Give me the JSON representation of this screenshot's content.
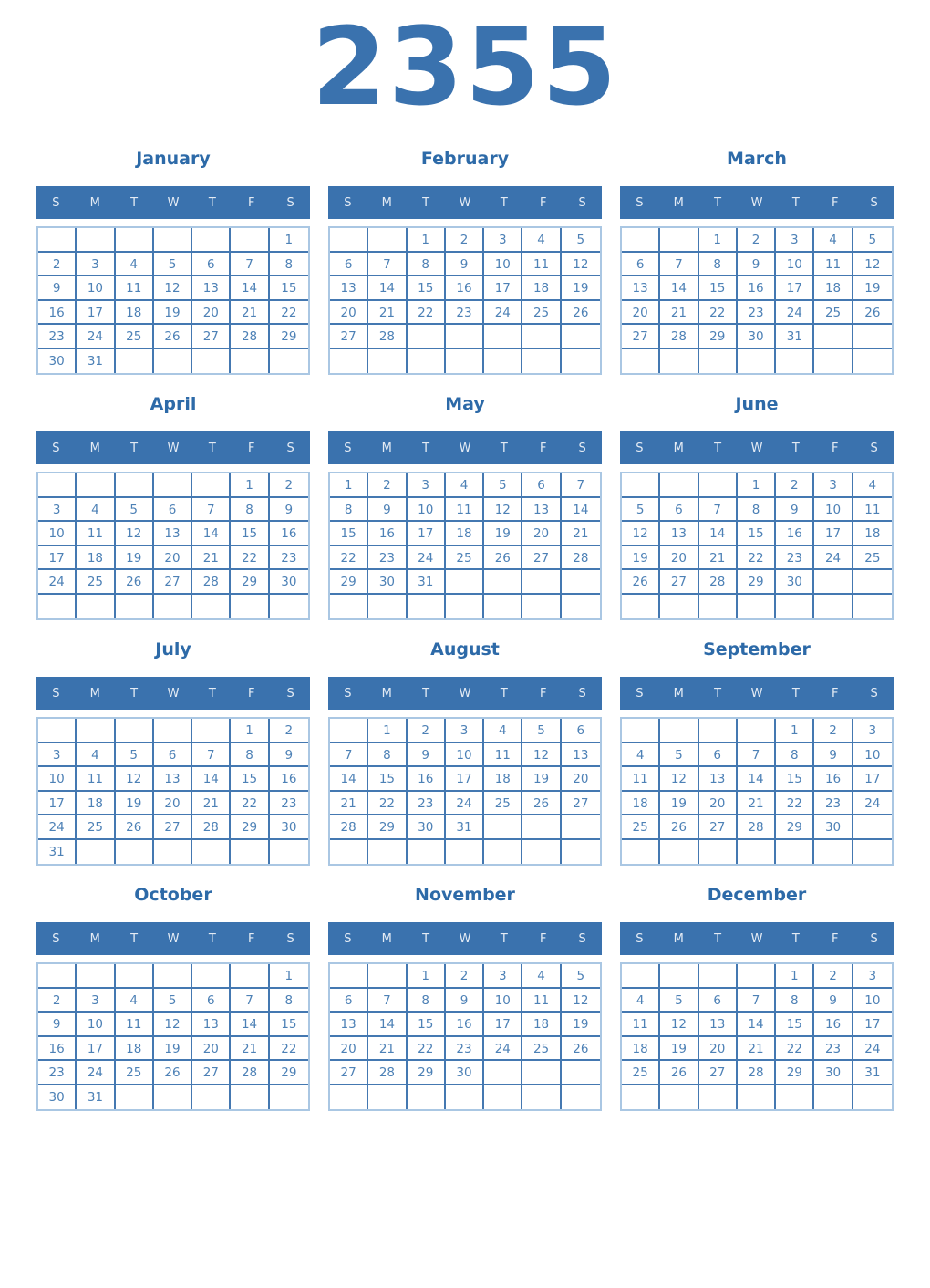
{
  "page": {
    "year": "2355"
  },
  "weekdays": [
    "S",
    "M",
    "T",
    "W",
    "T",
    "F",
    "S"
  ],
  "months": [
    {
      "name": "January",
      "weeks": [
        [
          "",
          "",
          "",
          "",
          "",
          "",
          "1"
        ],
        [
          "2",
          "3",
          "4",
          "5",
          "6",
          "7",
          "8"
        ],
        [
          "9",
          "10",
          "11",
          "12",
          "13",
          "14",
          "15"
        ],
        [
          "16",
          "17",
          "18",
          "19",
          "20",
          "21",
          "22"
        ],
        [
          "23",
          "24",
          "25",
          "26",
          "27",
          "28",
          "29"
        ],
        [
          "30",
          "31",
          "",
          "",
          "",
          "",
          ""
        ]
      ]
    },
    {
      "name": "February",
      "weeks": [
        [
          "",
          "",
          "1",
          "2",
          "3",
          "4",
          "5"
        ],
        [
          "6",
          "7",
          "8",
          "9",
          "10",
          "11",
          "12"
        ],
        [
          "13",
          "14",
          "15",
          "16",
          "17",
          "18",
          "19"
        ],
        [
          "20",
          "21",
          "22",
          "23",
          "24",
          "25",
          "26"
        ],
        [
          "27",
          "28",
          "",
          "",
          "",
          "",
          ""
        ],
        [
          "",
          "",
          "",
          "",
          "",
          "",
          ""
        ]
      ]
    },
    {
      "name": "March",
      "weeks": [
        [
          "",
          "",
          "1",
          "2",
          "3",
          "4",
          "5"
        ],
        [
          "6",
          "7",
          "8",
          "9",
          "10",
          "11",
          "12"
        ],
        [
          "13",
          "14",
          "15",
          "16",
          "17",
          "18",
          "19"
        ],
        [
          "20",
          "21",
          "22",
          "23",
          "24",
          "25",
          "26"
        ],
        [
          "27",
          "28",
          "29",
          "30",
          "31",
          "",
          ""
        ],
        [
          "",
          "",
          "",
          "",
          "",
          "",
          ""
        ]
      ]
    },
    {
      "name": "April",
      "weeks": [
        [
          "",
          "",
          "",
          "",
          "",
          "1",
          "2"
        ],
        [
          "3",
          "4",
          "5",
          "6",
          "7",
          "8",
          "9"
        ],
        [
          "10",
          "11",
          "12",
          "13",
          "14",
          "15",
          "16"
        ],
        [
          "17",
          "18",
          "19",
          "20",
          "21",
          "22",
          "23"
        ],
        [
          "24",
          "25",
          "26",
          "27",
          "28",
          "29",
          "30"
        ],
        [
          "",
          "",
          "",
          "",
          "",
          "",
          ""
        ]
      ]
    },
    {
      "name": "May",
      "weeks": [
        [
          "1",
          "2",
          "3",
          "4",
          "5",
          "6",
          "7"
        ],
        [
          "8",
          "9",
          "10",
          "11",
          "12",
          "13",
          "14"
        ],
        [
          "15",
          "16",
          "17",
          "18",
          "19",
          "20",
          "21"
        ],
        [
          "22",
          "23",
          "24",
          "25",
          "26",
          "27",
          "28"
        ],
        [
          "29",
          "30",
          "31",
          "",
          "",
          "",
          ""
        ],
        [
          "",
          "",
          "",
          "",
          "",
          "",
          ""
        ]
      ]
    },
    {
      "name": "June",
      "weeks": [
        [
          "",
          "",
          "",
          "1",
          "2",
          "3",
          "4"
        ],
        [
          "5",
          "6",
          "7",
          "8",
          "9",
          "10",
          "11"
        ],
        [
          "12",
          "13",
          "14",
          "15",
          "16",
          "17",
          "18"
        ],
        [
          "19",
          "20",
          "21",
          "22",
          "23",
          "24",
          "25"
        ],
        [
          "26",
          "27",
          "28",
          "29",
          "30",
          "",
          ""
        ],
        [
          "",
          "",
          "",
          "",
          "",
          "",
          ""
        ]
      ]
    },
    {
      "name": "July",
      "weeks": [
        [
          "",
          "",
          "",
          "",
          "",
          "1",
          "2"
        ],
        [
          "3",
          "4",
          "5",
          "6",
          "7",
          "8",
          "9"
        ],
        [
          "10",
          "11",
          "12",
          "13",
          "14",
          "15",
          "16"
        ],
        [
          "17",
          "18",
          "19",
          "20",
          "21",
          "22",
          "23"
        ],
        [
          "24",
          "25",
          "26",
          "27",
          "28",
          "29",
          "30"
        ],
        [
          "31",
          "",
          "",
          "",
          "",
          "",
          ""
        ]
      ]
    },
    {
      "name": "August",
      "weeks": [
        [
          "",
          "1",
          "2",
          "3",
          "4",
          "5",
          "6"
        ],
        [
          "7",
          "8",
          "9",
          "10",
          "11",
          "12",
          "13"
        ],
        [
          "14",
          "15",
          "16",
          "17",
          "18",
          "19",
          "20"
        ],
        [
          "21",
          "22",
          "23",
          "24",
          "25",
          "26",
          "27"
        ],
        [
          "28",
          "29",
          "30",
          "31",
          "",
          "",
          ""
        ],
        [
          "",
          "",
          "",
          "",
          "",
          "",
          ""
        ]
      ]
    },
    {
      "name": "September",
      "weeks": [
        [
          "",
          "",
          "",
          "",
          "1",
          "2",
          "3"
        ],
        [
          "4",
          "5",
          "6",
          "7",
          "8",
          "9",
          "10"
        ],
        [
          "11",
          "12",
          "13",
          "14",
          "15",
          "16",
          "17"
        ],
        [
          "18",
          "19",
          "20",
          "21",
          "22",
          "23",
          "24"
        ],
        [
          "25",
          "26",
          "27",
          "28",
          "29",
          "30",
          ""
        ],
        [
          "",
          "",
          "",
          "",
          "",
          "",
          ""
        ]
      ]
    },
    {
      "name": "October",
      "weeks": [
        [
          "",
          "",
          "",
          "",
          "",
          "",
          "1"
        ],
        [
          "2",
          "3",
          "4",
          "5",
          "6",
          "7",
          "8"
        ],
        [
          "9",
          "10",
          "11",
          "12",
          "13",
          "14",
          "15"
        ],
        [
          "16",
          "17",
          "18",
          "19",
          "20",
          "21",
          "22"
        ],
        [
          "23",
          "24",
          "25",
          "26",
          "27",
          "28",
          "29"
        ],
        [
          "30",
          "31",
          "",
          "",
          "",
          "",
          ""
        ]
      ]
    },
    {
      "name": "November",
      "weeks": [
        [
          "",
          "",
          "1",
          "2",
          "3",
          "4",
          "5"
        ],
        [
          "6",
          "7",
          "8",
          "9",
          "10",
          "11",
          "12"
        ],
        [
          "13",
          "14",
          "15",
          "16",
          "17",
          "18",
          "19"
        ],
        [
          "20",
          "21",
          "22",
          "23",
          "24",
          "25",
          "26"
        ],
        [
          "27",
          "28",
          "29",
          "30",
          "",
          "",
          ""
        ],
        [
          "",
          "",
          "",
          "",
          "",
          "",
          ""
        ]
      ]
    },
    {
      "name": "December",
      "weeks": [
        [
          "",
          "",
          "",
          "",
          "1",
          "2",
          "3"
        ],
        [
          "4",
          "5",
          "6",
          "7",
          "8",
          "9",
          "10"
        ],
        [
          "11",
          "12",
          "13",
          "14",
          "15",
          "16",
          "17"
        ],
        [
          "18",
          "19",
          "20",
          "21",
          "22",
          "23",
          "24"
        ],
        [
          "25",
          "26",
          "27",
          "28",
          "29",
          "30",
          "31"
        ],
        [
          "",
          "",
          "",
          "",
          "",
          "",
          ""
        ]
      ]
    }
  ],
  "colors": {
    "accent_blue": "#3a72ae",
    "month_title_blue": "#2d6aa8",
    "day_number_blue": "#4d81b6",
    "grid_line_blue": "#4478b1",
    "outer_border_blue": "#aac7e3",
    "weekday_text": "#e4ebf4"
  }
}
